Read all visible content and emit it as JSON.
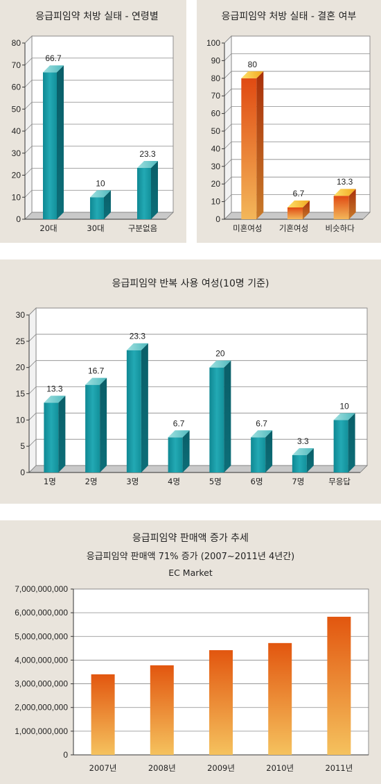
{
  "chart_data": [
    {
      "type": "bar",
      "title": "응급피임약 처방 실태 - 연령별",
      "categories": [
        "20대",
        "30대",
        "구분없음"
      ],
      "values": [
        66.7,
        10,
        23.3
      ],
      "value_labels": [
        "66.7",
        "10",
        "23.3"
      ],
      "ylim": [
        0,
        80
      ],
      "yticks": [
        0,
        10,
        20,
        30,
        40,
        50,
        60,
        70,
        80
      ],
      "grid": true,
      "bar_color": "#1f9aa6"
    },
    {
      "type": "bar",
      "title": "응급피임약 처방 실태 - 결혼 여부",
      "categories": [
        "미혼여성",
        "기혼여성",
        "비슷하다"
      ],
      "values": [
        80,
        6.7,
        13.3
      ],
      "value_labels": [
        "80",
        "6.7",
        "13.3"
      ],
      "ylim": [
        0,
        100
      ],
      "yticks": [
        0,
        10,
        20,
        30,
        40,
        50,
        60,
        70,
        80,
        90,
        100
      ],
      "grid": true,
      "bar_color": "#e8651a"
    },
    {
      "type": "bar",
      "title": "응급피임약 반복 사용 여성(10명 기준)",
      "categories": [
        "1명",
        "2명",
        "3명",
        "4명",
        "5명",
        "6명",
        "7명",
        "무응답"
      ],
      "values": [
        13.3,
        16.7,
        23.3,
        6.7,
        20,
        6.7,
        3.3,
        10
      ],
      "value_labels": [
        "13.3",
        "16.7",
        "23.3",
        "6.7",
        "20",
        "6.7",
        "3.3",
        "10"
      ],
      "ylim": [
        0,
        30
      ],
      "yticks": [
        0,
        5,
        10,
        15,
        20,
        25,
        30
      ],
      "grid": true,
      "bar_color": "#1f9aa6"
    },
    {
      "type": "bar",
      "title": "응급피임약 판매액 증가 추세",
      "subtitle": "응급피임약 판매액 71% 증가 (2007~2011년 4년간)",
      "source": "EC Market",
      "categories": [
        "2007년",
        "2008년",
        "2009년",
        "2010년",
        "2011년"
      ],
      "values": [
        3400000000,
        3780000000,
        4420000000,
        4720000000,
        5830000000
      ],
      "ylim": [
        0,
        7000000000
      ],
      "yticks": [
        "0",
        "1,000,000,000",
        "2,000,000,000",
        "3,000,000,000",
        "4,000,000,000",
        "5,000,000,000",
        "6,000,000,000",
        "7,000,000,000"
      ],
      "grid": true,
      "bar_color": "#e8651a"
    }
  ]
}
